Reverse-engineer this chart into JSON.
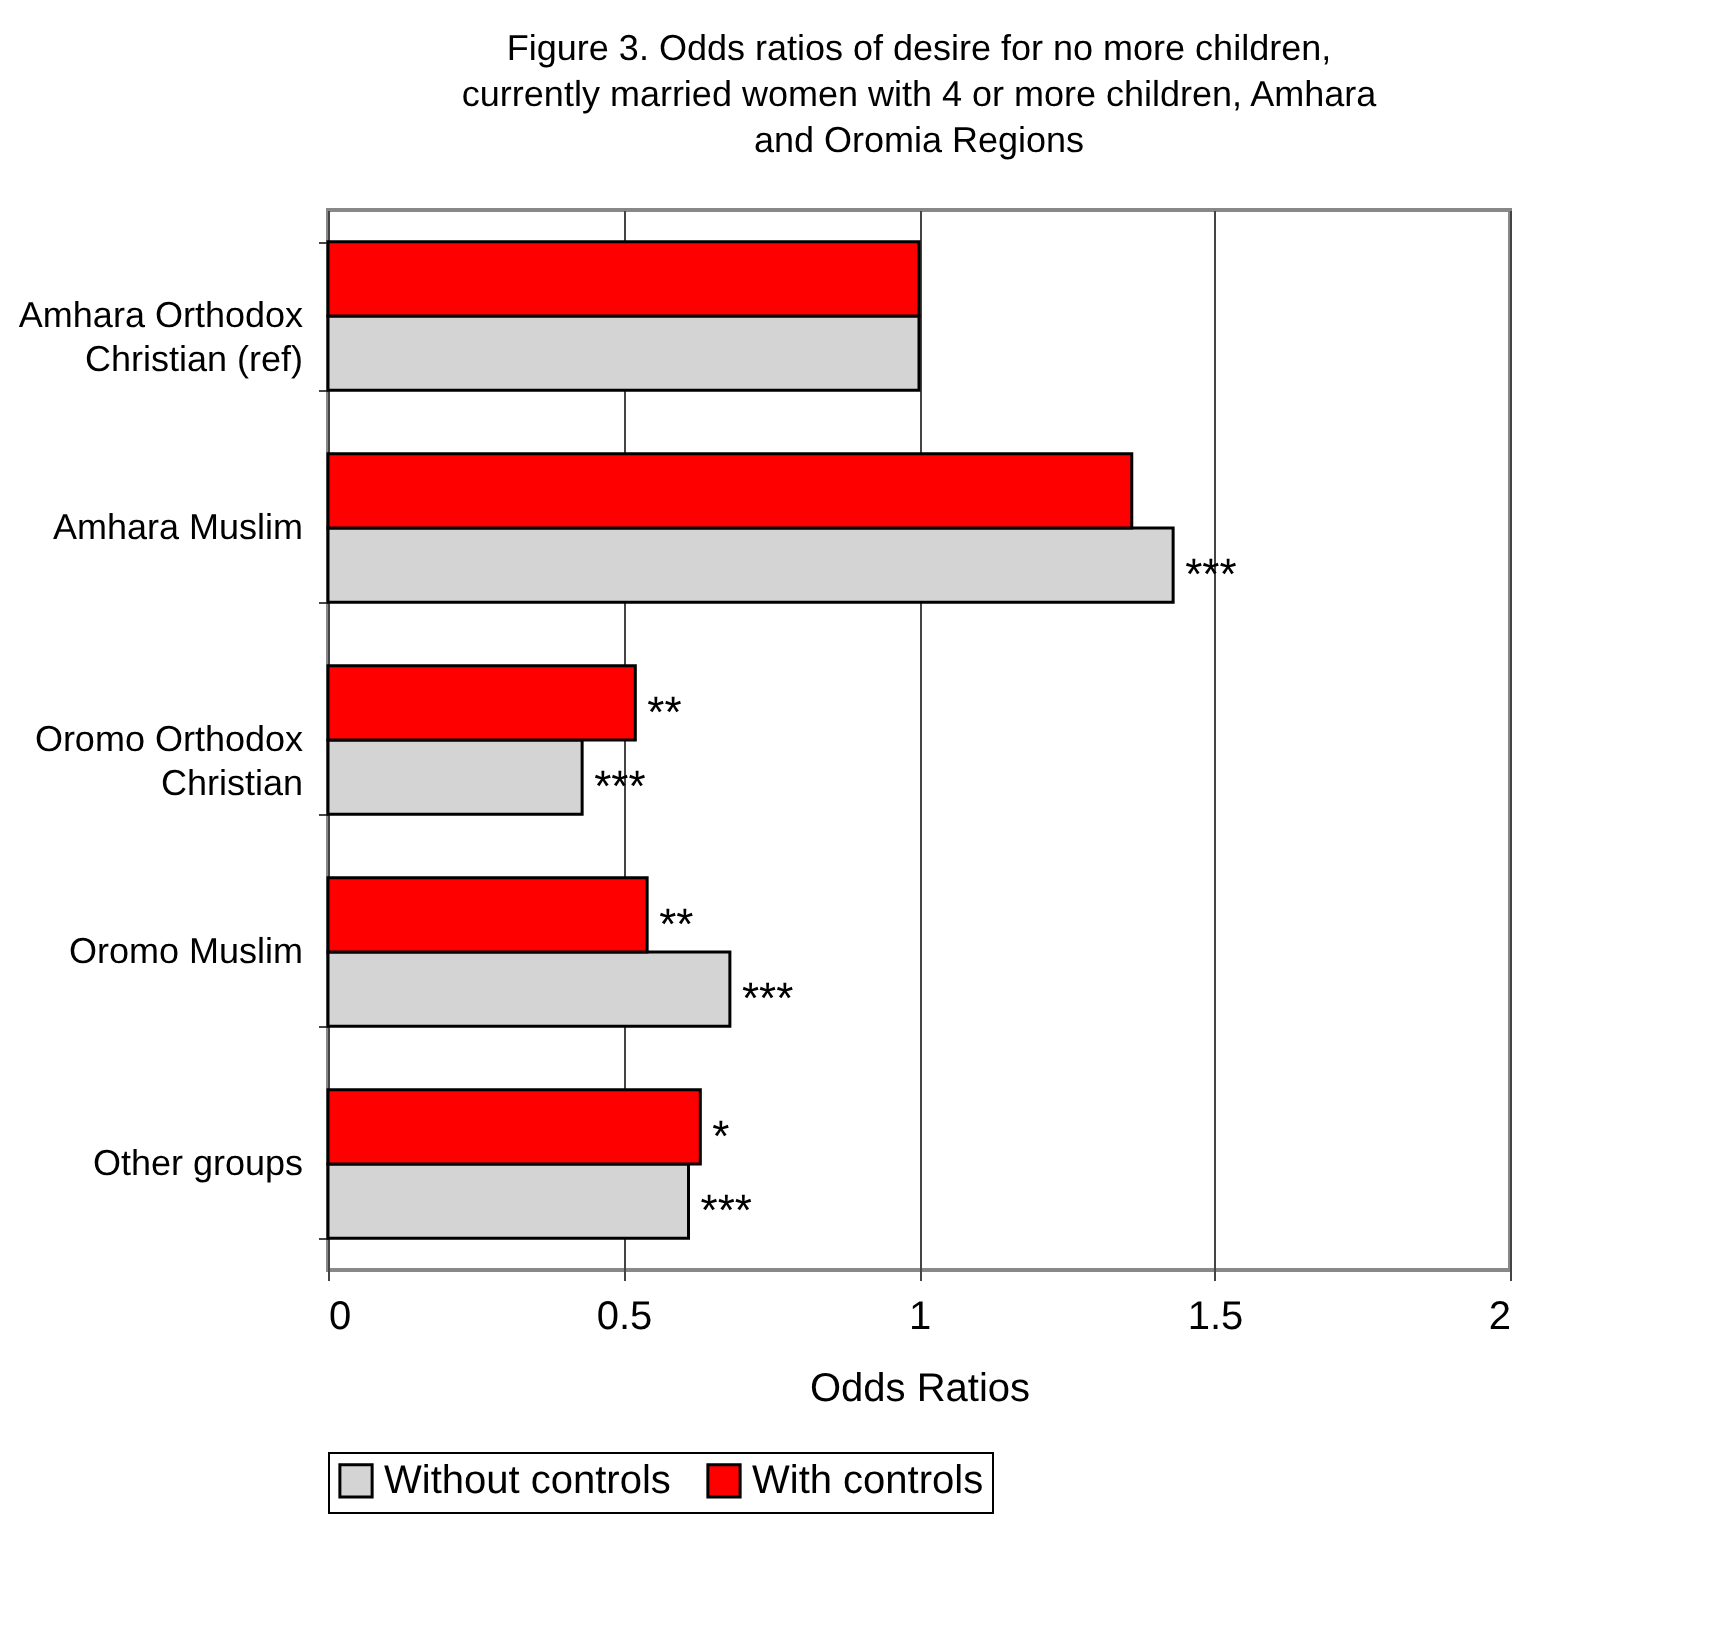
{
  "chart_data": {
    "type": "bar",
    "orientation": "horizontal",
    "title": "Figure 3. Odds ratios of desire for no more children, currently married women with 4 or more children, Amhara and Oromia Regions",
    "categories": [
      "Amhara Orthodox Christian (ref)",
      "Amhara Muslim",
      "Oromo Orthodox Christian",
      "Oromo Muslim",
      "Other groups"
    ],
    "series": [
      {
        "name": "Without controls",
        "color": "#d4d4d4",
        "values": [
          1.0,
          1.43,
          0.43,
          0.68,
          0.61
        ]
      },
      {
        "name": "With controls",
        "color": "#ff0000",
        "values": [
          1.0,
          1.36,
          0.52,
          0.54,
          0.63
        ]
      }
    ],
    "xlabel": "Odds Ratios",
    "xlim": [
      0,
      2
    ],
    "xticks": [
      0,
      0.5,
      1,
      1.5,
      2
    ],
    "grid": "x",
    "legend": "bottom",
    "annotations": [
      {
        "text": "***",
        "x": 1.43,
        "y": "Amhara Muslim"
      },
      {
        "text": "**",
        "x": 0.52,
        "y": "Oromo Orthodox Christian"
      },
      {
        "text": "***",
        "x": 0.43,
        "y": "Oromo Orthodox Christian"
      },
      {
        "text": "**",
        "x": 0.54,
        "y": "Oromo Muslim"
      },
      {
        "text": "***",
        "x": 0.68,
        "y": "Oromo Muslim"
      },
      {
        "text": "*",
        "x": 0.63,
        "y": "Other groups"
      },
      {
        "text": "***",
        "x": 0.61,
        "y": "Other groups"
      }
    ]
  }
}
